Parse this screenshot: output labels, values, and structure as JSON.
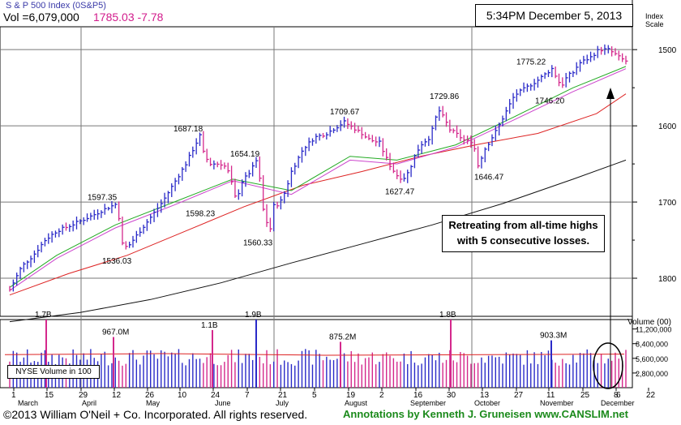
{
  "header": {
    "title": "S & P 500 Index",
    "symbol": "(0S&P5)",
    "volume_label": "Vol =6,079,000",
    "price": "1785.03",
    "change": "-7.78",
    "timestamp": "5:34PM December 5, 2013"
  },
  "price_scale": {
    "label_line1": "Index",
    "label_line2": "Scale",
    "ticks": [
      "1800",
      "1700",
      "1600",
      "1500"
    ]
  },
  "volume_scale": {
    "title": "Volume (00)",
    "ticks": [
      "11,200,000",
      "8,400,000",
      "5,600,000",
      "2,800,000"
    ]
  },
  "annotation": {
    "line1": "Retreating from all-time highs",
    "line2": "with 5 consecutive losses."
  },
  "nyse_label": "NYSE Volume in 100",
  "footer": {
    "copyright": "©2013 William O'Neil + Co. Incorporated. All rights reserved.",
    "credit": "Annotations by Kenneth J. Gruneisen www.CANSLIM.net"
  },
  "colors": {
    "up_bar": "#2a2ac8",
    "down_bar": "#d4288c",
    "ma_50": "#22aa22",
    "ma_short": "#cc44cc",
    "ma_red": "#dd2222",
    "ma_200": "#111111",
    "grid": "#bdbdbd",
    "footer_green": "#1b8a1b"
  },
  "chart_data": {
    "type": "ohlc",
    "title": "S & P 500 Index",
    "period": "March 2013 - December 5, 2013",
    "ylim": [
      1450,
      1830
    ],
    "price_gridlines": [
      1500,
      1600,
      1700,
      1800
    ],
    "volume_ylim": [
      0,
      13000000
    ],
    "x_tick_labels": [
      "1",
      "15",
      "29",
      "12",
      "26",
      "10",
      "24",
      "7",
      "21",
      "5",
      "19",
      "2",
      "16",
      "30",
      "13",
      "27",
      "11",
      "25",
      "8",
      "22",
      "6"
    ],
    "month_labels": [
      "March",
      "April",
      "May",
      "June",
      "July",
      "August",
      "September",
      "October",
      "November",
      "December"
    ],
    "price_annotations": [
      {
        "label": "1597.35",
        "value": 1597.35
      },
      {
        "label": "1536.03",
        "value": 1536.03
      },
      {
        "label": "1687.18",
        "value": 1687.18
      },
      {
        "label": "1598.23",
        "value": 1598.23
      },
      {
        "label": "1654.19",
        "value": 1654.19
      },
      {
        "label": "1560.33",
        "value": 1560.33
      },
      {
        "label": "1709.67",
        "value": 1709.67
      },
      {
        "label": "1627.47",
        "value": 1627.47
      },
      {
        "label": "1729.86",
        "value": 1729.86
      },
      {
        "label": "1646.47",
        "value": 1646.47
      },
      {
        "label": "1775.22",
        "value": 1775.22
      },
      {
        "label": "1746.20",
        "value": 1746.2
      }
    ],
    "volume_annotations": [
      "1.7B",
      "967.0M",
      "1.1B",
      "1.9B",
      "875.2M",
      "1.8B",
      "903.3M"
    ],
    "close_path": [
      [
        0,
        1485
      ],
      [
        10,
        1515
      ],
      [
        20,
        1530
      ],
      [
        30,
        1550
      ],
      [
        40,
        1562
      ],
      [
        50,
        1568
      ],
      [
        60,
        1575
      ],
      [
        70,
        1582
      ],
      [
        80,
        1590
      ],
      [
        90,
        1597
      ],
      [
        93,
        1580
      ],
      [
        96,
        1545
      ],
      [
        100,
        1540
      ],
      [
        110,
        1560
      ],
      [
        120,
        1580
      ],
      [
        130,
        1600
      ],
      [
        140,
        1625
      ],
      [
        150,
        1650
      ],
      [
        158,
        1675
      ],
      [
        162,
        1687
      ],
      [
        165,
        1665
      ],
      [
        170,
        1650
      ],
      [
        180,
        1650
      ],
      [
        185,
        1645
      ],
      [
        190,
        1620
      ],
      [
        193,
        1600
      ],
      [
        197,
        1625
      ],
      [
        205,
        1640
      ],
      [
        210,
        1654
      ],
      [
        213,
        1630
      ],
      [
        216,
        1590
      ],
      [
        220,
        1568
      ],
      [
        222,
        1565
      ],
      [
        225,
        1595
      ],
      [
        230,
        1598
      ],
      [
        235,
        1615
      ],
      [
        240,
        1640
      ],
      [
        250,
        1670
      ],
      [
        260,
        1685
      ],
      [
        270,
        1690
      ],
      [
        280,
        1700
      ],
      [
        285,
        1705
      ],
      [
        290,
        1700
      ],
      [
        300,
        1690
      ],
      [
        305,
        1683
      ],
      [
        310,
        1680
      ],
      [
        315,
        1678
      ],
      [
        320,
        1660
      ],
      [
        325,
        1645
      ],
      [
        330,
        1635
      ],
      [
        335,
        1630
      ],
      [
        340,
        1640
      ],
      [
        345,
        1660
      ],
      [
        350,
        1675
      ],
      [
        358,
        1685
      ],
      [
        362,
        1705
      ],
      [
        365,
        1722
      ],
      [
        370,
        1710
      ],
      [
        375,
        1695
      ],
      [
        380,
        1690
      ],
      [
        388,
        1680
      ],
      [
        393,
        1680
      ],
      [
        396,
        1670
      ],
      [
        399,
        1648
      ],
      [
        405,
        1670
      ],
      [
        415,
        1695
      ],
      [
        420,
        1710
      ],
      [
        430,
        1740
      ],
      [
        440,
        1750
      ],
      [
        450,
        1760
      ],
      [
        458,
        1770
      ],
      [
        462,
        1775
      ],
      [
        467,
        1760
      ],
      [
        470,
        1752
      ],
      [
        475,
        1765
      ],
      [
        480,
        1770
      ],
      [
        485,
        1782
      ],
      [
        495,
        1790
      ],
      [
        502,
        1800
      ],
      [
        510,
        1800
      ],
      [
        515,
        1795
      ],
      [
        520,
        1789
      ],
      [
        525,
        1785
      ]
    ],
    "ma_50_path": [
      [
        0,
        1488
      ],
      [
        40,
        1530
      ],
      [
        90,
        1570
      ],
      [
        140,
        1600
      ],
      [
        190,
        1630
      ],
      [
        240,
        1615
      ],
      [
        290,
        1660
      ],
      [
        330,
        1655
      ],
      [
        380,
        1675
      ],
      [
        430,
        1712
      ],
      [
        480,
        1750
      ],
      [
        525,
        1778
      ]
    ],
    "ma_short_path": [
      [
        0,
        1484
      ],
      [
        40,
        1526
      ],
      [
        90,
        1566
      ],
      [
        140,
        1596
      ],
      [
        190,
        1628
      ],
      [
        240,
        1610
      ],
      [
        290,
        1655
      ],
      [
        330,
        1650
      ],
      [
        380,
        1672
      ],
      [
        430,
        1708
      ],
      [
        480,
        1745
      ],
      [
        525,
        1775
      ]
    ],
    "ma_red_path": [
      [
        0,
        1478
      ],
      [
        50,
        1506
      ],
      [
        100,
        1530
      ],
      [
        150,
        1562
      ],
      [
        200,
        1594
      ],
      [
        250,
        1622
      ],
      [
        300,
        1640
      ],
      [
        350,
        1660
      ],
      [
        400,
        1676
      ],
      [
        450,
        1690
      ],
      [
        500,
        1716
      ],
      [
        525,
        1742
      ]
    ],
    "ma_200_path": [
      [
        0,
        1443
      ],
      [
        60,
        1455
      ],
      [
        120,
        1472
      ],
      [
        180,
        1494
      ],
      [
        240,
        1520
      ],
      [
        300,
        1545
      ],
      [
        360,
        1570
      ],
      [
        420,
        1598
      ],
      [
        480,
        1630
      ],
      [
        525,
        1655
      ]
    ],
    "volume_markers": [
      {
        "label": "1.7B",
        "value": 17000000
      },
      {
        "label": "967.0M",
        "value": 9670000
      },
      {
        "label": "1.1B",
        "value": 11000000
      },
      {
        "label": "1.9B",
        "value": 19000000
      },
      {
        "label": "875.2M",
        "value": 8752000
      },
      {
        "label": "1.8B",
        "value": 18000000
      },
      {
        "label": "903.3M",
        "value": 9033000
      }
    ]
  }
}
